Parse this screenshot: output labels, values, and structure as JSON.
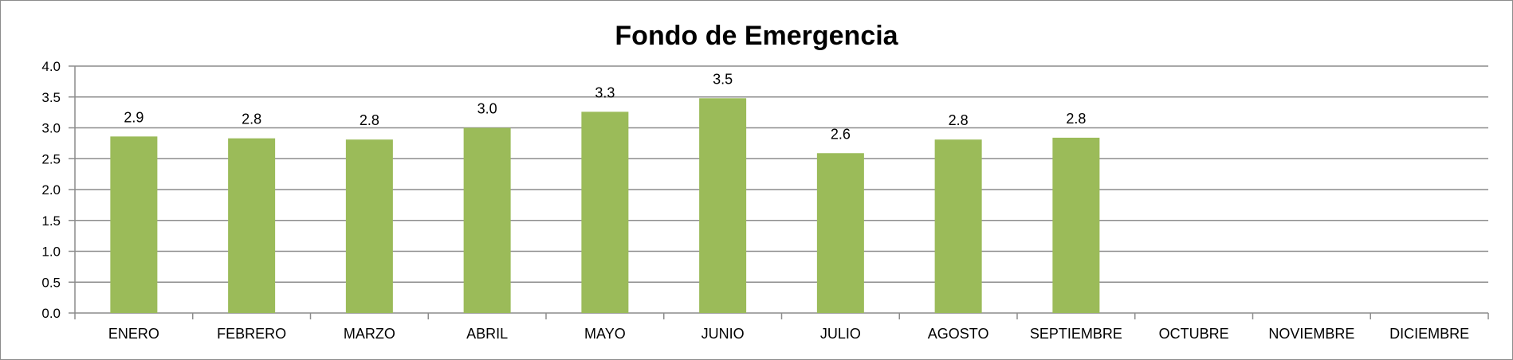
{
  "chart_data": {
    "type": "bar",
    "title": "Fondo de Emergencia",
    "xlabel": "",
    "ylabel": "",
    "ylim": [
      0,
      4.0
    ],
    "y_ticks": [
      "0.0",
      "0.5",
      "1.0",
      "1.5",
      "2.0",
      "2.5",
      "3.0",
      "3.5",
      "4.0"
    ],
    "grid": true,
    "legend": "none",
    "categories": [
      "ENERO",
      "FEBRERO",
      "MARZO",
      "ABRIL",
      "MAYO",
      "JUNIO",
      "JULIO",
      "AGOSTO",
      "SEPTIEMBRE",
      "OCTUBRE",
      "NOVIEMBRE",
      "DICIEMBRE"
    ],
    "series": [
      {
        "name": "Fondo de Emergencia",
        "color": "#9bbb59",
        "values": [
          2.86,
          2.83,
          2.81,
          3.0,
          3.26,
          3.48,
          2.59,
          2.81,
          2.84,
          null,
          null,
          null
        ],
        "labels": [
          "2.9",
          "2.8",
          "2.8",
          "3.0",
          "3.3",
          "3.5",
          "2.6",
          "2.8",
          "2.8",
          "",
          "",
          ""
        ]
      }
    ]
  },
  "colors": {
    "bar": "#9bbb59",
    "gridline": "#8c8c8c",
    "axis": "#8c8c8c",
    "frame": "#8c8c8c"
  }
}
